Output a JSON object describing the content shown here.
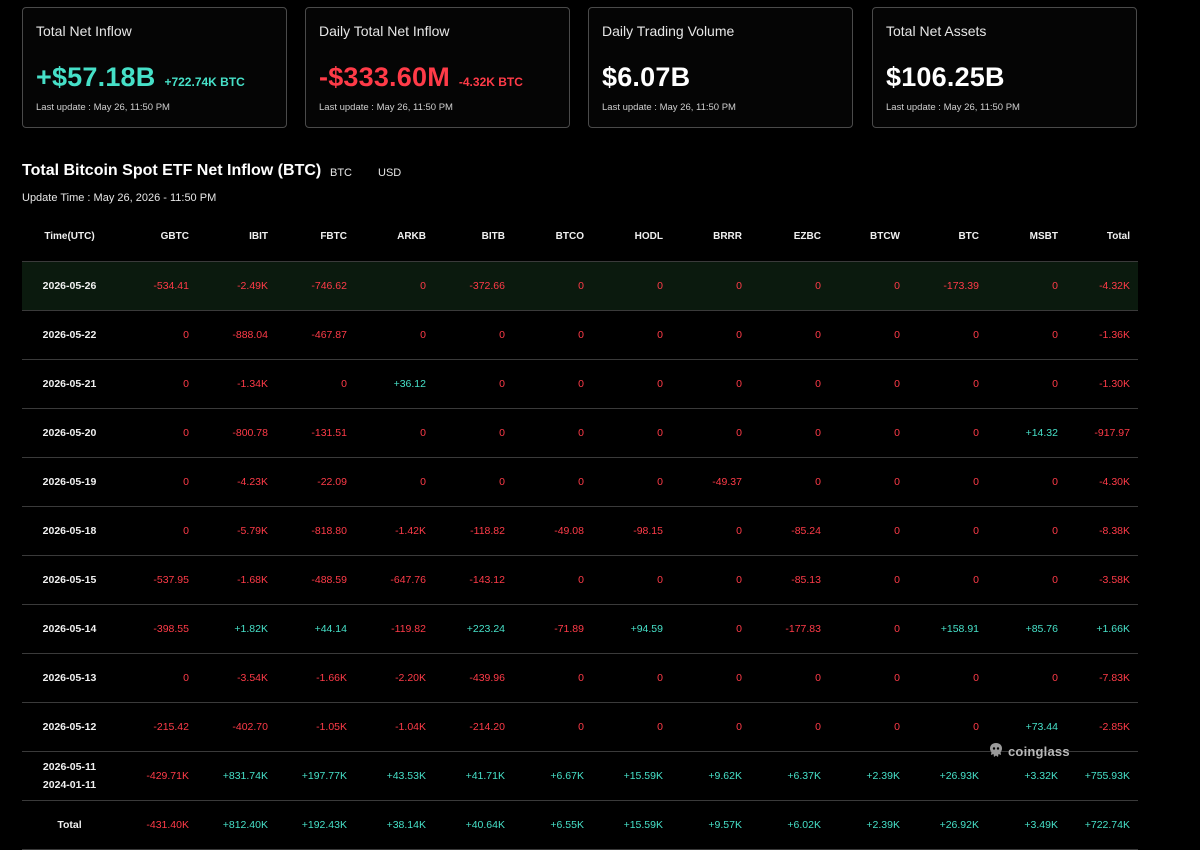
{
  "colors": {
    "positive": "#46e0c8",
    "negative": "#ff3b48",
    "border": "#4a4a4a"
  },
  "cards": [
    {
      "title": "Total Net Inflow",
      "value": "+$57.18B",
      "value_tone": "pos",
      "sub": "+722.74K BTC",
      "sub_tone": "pos",
      "update": "Last update : May 26, 11:50 PM"
    },
    {
      "title": "Daily Total Net Inflow",
      "value": "-$333.60M",
      "value_tone": "neg",
      "sub": "-4.32K BTC",
      "sub_tone": "neg",
      "update": "Last update : May 26, 11:50 PM"
    },
    {
      "title": "Daily Trading Volume",
      "value": "$6.07B",
      "value_tone": "neu",
      "sub": "",
      "sub_tone": "neu",
      "update": "Last update : May 26, 11:50 PM"
    },
    {
      "title": "Total Net Assets",
      "value": "$106.25B",
      "value_tone": "neu",
      "sub": "",
      "sub_tone": "neu",
      "update": "Last update : May 26, 11:50 PM"
    }
  ],
  "section": {
    "title": "Total Bitcoin Spot ETF Net Inflow (BTC)",
    "toggle_btc": "BTC",
    "toggle_usd": "USD",
    "update_time": "Update Time : May 26, 2026 - 11:50 PM"
  },
  "table": {
    "columns": [
      "Time(UTC)",
      "GBTC",
      "IBIT",
      "FBTC",
      "ARKB",
      "BITB",
      "BTCO",
      "HODL",
      "BRRR",
      "EZBC",
      "BTCW",
      "BTC",
      "MSBT",
      "Total"
    ],
    "rows": [
      {
        "time": "2026-05-26",
        "time2": "",
        "values": [
          "-534.41",
          "-2.49K",
          "-746.62",
          "0",
          "-372.66",
          "0",
          "0",
          "0",
          "0",
          "0",
          "-173.39",
          "0",
          "-4.32K"
        ]
      },
      {
        "time": "2026-05-22",
        "time2": "",
        "values": [
          "0",
          "-888.04",
          "-467.87",
          "0",
          "0",
          "0",
          "0",
          "0",
          "0",
          "0",
          "0",
          "0",
          "-1.36K"
        ]
      },
      {
        "time": "2026-05-21",
        "time2": "",
        "values": [
          "0",
          "-1.34K",
          "0",
          "+36.12",
          "0",
          "0",
          "0",
          "0",
          "0",
          "0",
          "0",
          "0",
          "-1.30K"
        ]
      },
      {
        "time": "2026-05-20",
        "time2": "",
        "values": [
          "0",
          "-800.78",
          "-131.51",
          "0",
          "0",
          "0",
          "0",
          "0",
          "0",
          "0",
          "0",
          "+14.32",
          "-917.97"
        ]
      },
      {
        "time": "2026-05-19",
        "time2": "",
        "values": [
          "0",
          "-4.23K",
          "-22.09",
          "0",
          "0",
          "0",
          "0",
          "-49.37",
          "0",
          "0",
          "0",
          "0",
          "-4.30K"
        ]
      },
      {
        "time": "2026-05-18",
        "time2": "",
        "values": [
          "0",
          "-5.79K",
          "-818.80",
          "-1.42K",
          "-118.82",
          "-49.08",
          "-98.15",
          "0",
          "-85.24",
          "0",
          "0",
          "0",
          "-8.38K"
        ]
      },
      {
        "time": "2026-05-15",
        "time2": "",
        "values": [
          "-537.95",
          "-1.68K",
          "-488.59",
          "-647.76",
          "-143.12",
          "0",
          "0",
          "0",
          "-85.13",
          "0",
          "0",
          "0",
          "-3.58K"
        ]
      },
      {
        "time": "2026-05-14",
        "time2": "",
        "values": [
          "-398.55",
          "+1.82K",
          "+44.14",
          "-119.82",
          "+223.24",
          "-71.89",
          "+94.59",
          "0",
          "-177.83",
          "0",
          "+158.91",
          "+85.76",
          "+1.66K"
        ]
      },
      {
        "time": "2026-05-13",
        "time2": "",
        "values": [
          "0",
          "-3.54K",
          "-1.66K",
          "-2.20K",
          "-439.96",
          "0",
          "0",
          "0",
          "0",
          "0",
          "0",
          "0",
          "-7.83K"
        ]
      },
      {
        "time": "2026-05-12",
        "time2": "",
        "values": [
          "-215.42",
          "-402.70",
          "-1.05K",
          "-1.04K",
          "-214.20",
          "0",
          "0",
          "0",
          "0",
          "0",
          "0",
          "+73.44",
          "-2.85K"
        ]
      },
      {
        "time": "2026-05-11",
        "time2": "2024-01-11",
        "values": [
          "-429.71K",
          "+831.74K",
          "+197.77K",
          "+43.53K",
          "+41.71K",
          "+6.67K",
          "+15.59K",
          "+9.62K",
          "+6.37K",
          "+2.39K",
          "+26.93K",
          "+3.32K",
          "+755.93K"
        ]
      },
      {
        "time": "Total",
        "time2": "",
        "values": [
          "-431.40K",
          "+812.40K",
          "+192.43K",
          "+38.14K",
          "+40.64K",
          "+6.55K",
          "+15.59K",
          "+9.57K",
          "+6.02K",
          "+2.39K",
          "+26.92K",
          "+3.49K",
          "+722.74K"
        ]
      }
    ]
  },
  "watermark": {
    "text": "coinglass",
    "icon": "coinglass-logo-icon"
  }
}
